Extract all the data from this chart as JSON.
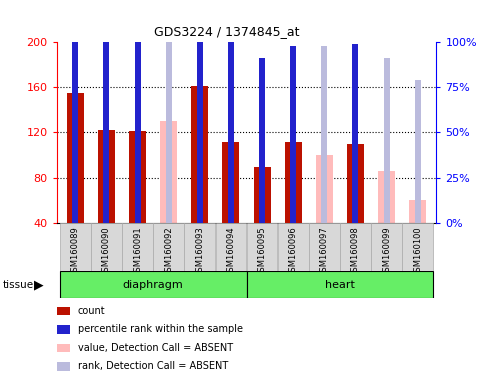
{
  "title": "GDS3224 / 1374845_at",
  "samples": [
    "GSM160089",
    "GSM160090",
    "GSM160091",
    "GSM160092",
    "GSM160093",
    "GSM160094",
    "GSM160095",
    "GSM160096",
    "GSM160097",
    "GSM160098",
    "GSM160099",
    "GSM160100"
  ],
  "red_count": [
    155,
    122,
    121,
    0,
    161,
    112,
    89,
    112,
    0,
    110,
    0,
    0
  ],
  "blue_rank": [
    116,
    113,
    109,
    0,
    120,
    102,
    91,
    98,
    0,
    99,
    0,
    0
  ],
  "pink_value": [
    0,
    0,
    0,
    130,
    0,
    0,
    0,
    112,
    100,
    0,
    86,
    60
  ],
  "lavender_rank": [
    0,
    0,
    0,
    115,
    0,
    0,
    0,
    0,
    98,
    0,
    91,
    79
  ],
  "ylim_left": [
    40,
    200
  ],
  "ylim_right": [
    0,
    100
  ],
  "yticks_left": [
    40,
    80,
    120,
    160,
    200
  ],
  "yticks_right": [
    0,
    25,
    50,
    75,
    100
  ],
  "tissue_groups": [
    {
      "label": "diaphragm",
      "start": 0,
      "end": 6
    },
    {
      "label": "heart",
      "start": 6,
      "end": 12
    }
  ],
  "tissue_color": "#66ee66",
  "bar_width": 0.55,
  "red_color": "#bb1100",
  "blue_color": "#2222cc",
  "pink_color": "#ffbbbb",
  "lavender_color": "#bbbbdd",
  "plot_bg": "#ffffff",
  "tick_bg": "#d8d8d8"
}
